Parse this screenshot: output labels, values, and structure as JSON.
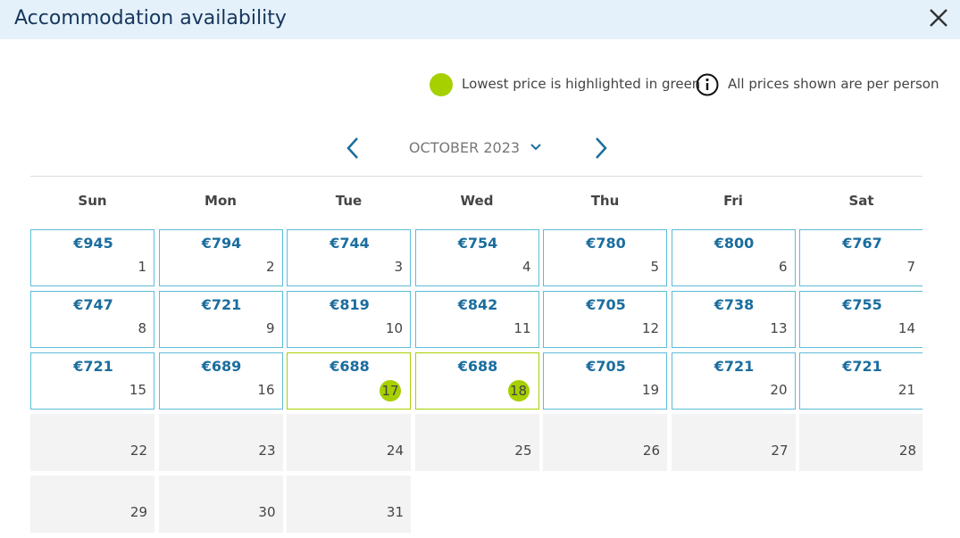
{
  "header": {
    "title": "Accommodation availability"
  },
  "legend": {
    "lowest": "Lowest price is highlighted in green",
    "note": "All prices shown are per person"
  },
  "calendar": {
    "month": "OCTOBER 2023",
    "weekdays": [
      "Sun",
      "Mon",
      "Tue",
      "Wed",
      "Thu",
      "Fri",
      "Sat"
    ],
    "days": [
      {
        "day": 1,
        "price": "€945"
      },
      {
        "day": 2,
        "price": "€794"
      },
      {
        "day": 3,
        "price": "€744"
      },
      {
        "day": 4,
        "price": "€754"
      },
      {
        "day": 5,
        "price": "€780"
      },
      {
        "day": 6,
        "price": "€800"
      },
      {
        "day": 7,
        "price": "€767"
      },
      {
        "day": 8,
        "price": "€747"
      },
      {
        "day": 9,
        "price": "€721"
      },
      {
        "day": 10,
        "price": "€819"
      },
      {
        "day": 11,
        "price": "€842"
      },
      {
        "day": 12,
        "price": "€705"
      },
      {
        "day": 13,
        "price": "€738"
      },
      {
        "day": 14,
        "price": "€755"
      },
      {
        "day": 15,
        "price": "€721"
      },
      {
        "day": 16,
        "price": "€689"
      },
      {
        "day": 17,
        "price": "€688"
      },
      {
        "day": 18,
        "price": "€688"
      },
      {
        "day": 19,
        "price": "€705"
      },
      {
        "day": 20,
        "price": "€721"
      },
      {
        "day": 21,
        "price": "€721"
      },
      {
        "day": 22,
        "price": null
      },
      {
        "day": 23,
        "price": null
      },
      {
        "day": 24,
        "price": null
      },
      {
        "day": 25,
        "price": null
      },
      {
        "day": 26,
        "price": null
      },
      {
        "day": 27,
        "price": null
      },
      {
        "day": 28,
        "price": null
      },
      {
        "day": 29,
        "price": null
      },
      {
        "day": 30,
        "price": null
      },
      {
        "day": 31,
        "price": null
      }
    ]
  }
}
